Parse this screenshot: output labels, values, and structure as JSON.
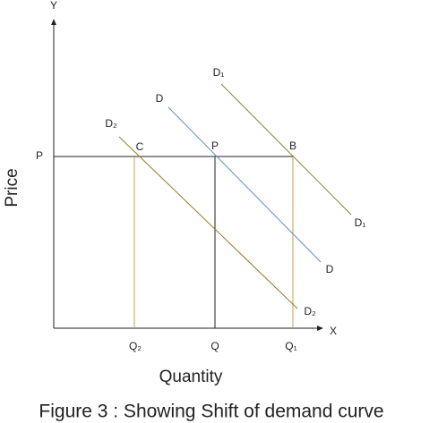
{
  "axes": {
    "y_label": "Y",
    "x_label": "X",
    "price": "Price",
    "quantity": "Quantity",
    "price_level": "P"
  },
  "curves": [
    {
      "name": "D",
      "start_label": "D",
      "end_label": "D"
    },
    {
      "name": "D1",
      "start_label": "D₁",
      "end_label": "D₁"
    },
    {
      "name": "D2",
      "start_label": "D₂",
      "end_label": "D₂"
    }
  ],
  "points": [
    "C",
    "P",
    "B"
  ],
  "quantities": [
    "Q₂",
    "Q",
    "Q₁"
  ],
  "caption": "Figure 3 : Showing Shift of demand curve"
}
